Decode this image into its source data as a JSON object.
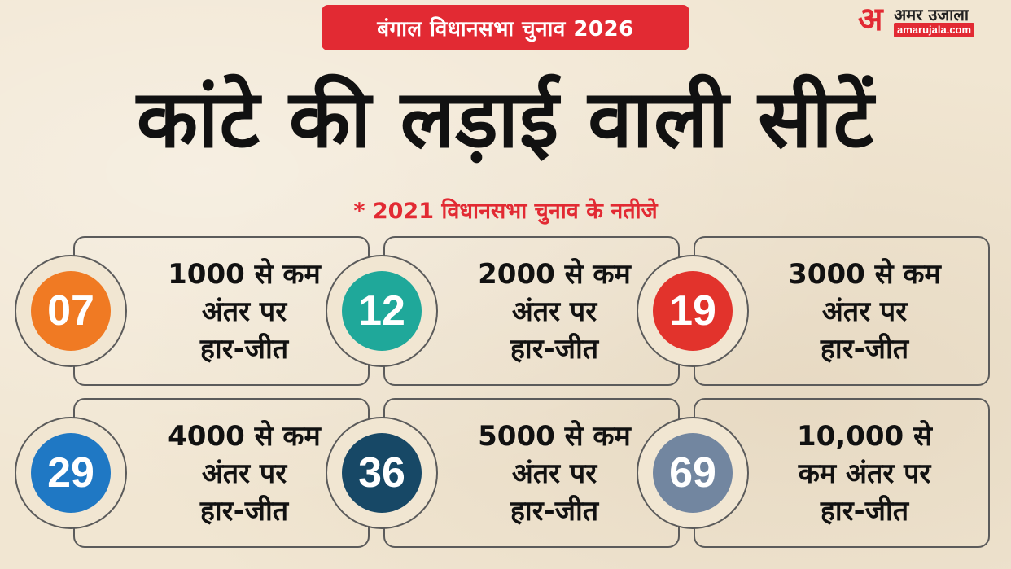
{
  "banner": "बंगाल विधानसभा चुनाव 2026",
  "logo": {
    "glyph": "अ",
    "hindi": "अमर उजाला",
    "url": "amarujala.com"
  },
  "headline": "कांटे की लड़ाई वाली सीटें",
  "subline": "* 2021 विधानसभा चुनाव के नतीजे",
  "cards": [
    {
      "number": "07",
      "color": "#f07a23",
      "lines": [
        "1000 से कम",
        "अंतर पर",
        "हार-जीत"
      ]
    },
    {
      "number": "12",
      "color": "#1fa89a",
      "lines": [
        "2000 से कम",
        "अंतर पर",
        "हार-जीत"
      ]
    },
    {
      "number": "19",
      "color": "#e2332c",
      "lines": [
        "3000 से कम",
        "अंतर पर",
        "हार-जीत"
      ]
    },
    {
      "number": "29",
      "color": "#1f78c4",
      "lines": [
        "4000 से कम",
        "अंतर पर",
        "हार-जीत"
      ]
    },
    {
      "number": "36",
      "color": "#174866",
      "lines": [
        "5000 से कम",
        "अंतर पर",
        "हार-जीत"
      ]
    },
    {
      "number": "69",
      "color": "#7286a0",
      "lines": [
        "10,000 से",
        "कम अंतर पर",
        "हार-जीत"
      ]
    }
  ]
}
